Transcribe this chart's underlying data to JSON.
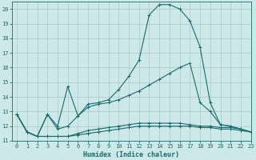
{
  "xlabel": "Humidex (Indice chaleur)",
  "background_color": "#cce8e8",
  "grid_color": "#b0cccc",
  "line_color": "#1a6b6b",
  "x_values": [
    0,
    1,
    2,
    3,
    4,
    5,
    6,
    7,
    8,
    9,
    10,
    11,
    12,
    13,
    14,
    15,
    16,
    17,
    18,
    19,
    20,
    21,
    22,
    23
  ],
  "series": [
    [
      12.8,
      11.6,
      11.3,
      12.8,
      12.0,
      14.7,
      12.7,
      13.5,
      13.6,
      13.8,
      14.5,
      15.4,
      16.5,
      19.6,
      20.3,
      20.3,
      20.0,
      19.2,
      17.4,
      13.6,
      12.1,
      12.0,
      11.8,
      11.6
    ],
    [
      12.8,
      11.6,
      11.3,
      12.8,
      11.8,
      12.0,
      12.7,
      13.3,
      13.5,
      13.6,
      13.8,
      14.1,
      14.4,
      14.8,
      15.2,
      15.6,
      16.0,
      16.3,
      13.6,
      13.0,
      12.1,
      12.0,
      11.8,
      11.6
    ],
    [
      12.8,
      11.6,
      11.3,
      11.3,
      11.3,
      11.3,
      11.5,
      11.7,
      11.8,
      11.9,
      12.0,
      12.1,
      12.2,
      12.2,
      12.2,
      12.2,
      12.2,
      12.1,
      12.0,
      12.0,
      11.9,
      11.9,
      11.8,
      11.6
    ],
    [
      12.8,
      11.6,
      11.3,
      11.3,
      11.3,
      11.3,
      11.4,
      11.5,
      11.6,
      11.7,
      11.8,
      11.9,
      12.0,
      12.0,
      12.0,
      12.0,
      12.0,
      12.0,
      11.9,
      11.9,
      11.8,
      11.8,
      11.7,
      11.6
    ]
  ],
  "ylim": [
    11,
    20.5
  ],
  "yticks": [
    11,
    12,
    13,
    14,
    15,
    16,
    17,
    18,
    19,
    20
  ],
  "xlim": [
    -0.5,
    23
  ],
  "xticks": [
    0,
    1,
    2,
    3,
    4,
    5,
    6,
    7,
    8,
    9,
    10,
    11,
    12,
    13,
    14,
    15,
    16,
    17,
    18,
    19,
    20,
    21,
    22,
    23
  ],
  "xlabel_fontsize": 6,
  "tick_fontsize": 5,
  "linewidth": 0.8,
  "markersize": 2.5,
  "marker": "+"
}
